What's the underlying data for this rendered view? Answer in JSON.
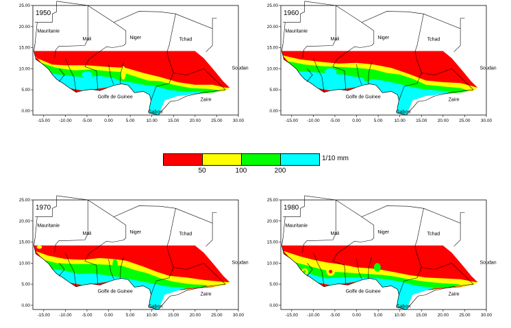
{
  "panels": [
    {
      "year": "1950"
    },
    {
      "year": "1960"
    },
    {
      "year": "1970"
    },
    {
      "year": "1980"
    }
  ],
  "y_ticks": [
    "25.00",
    "20.00",
    "15.00",
    "10.00",
    "5.00",
    "0.00"
  ],
  "x_ticks": [
    "-15.00",
    "-10.00",
    "-5.00",
    "0.00",
    "5.00",
    "10.00",
    "15.00",
    "20.00",
    "25.00",
    "30.00"
  ],
  "country_labels": {
    "mauritanie": "Mauritanie",
    "mali": "Mali",
    "niger": "Niger",
    "tchad": "Tchad",
    "soudan": "Soudan",
    "golfe": "Golfe de Guinee",
    "zaire": "Zaire",
    "gabon": "Gabon"
  },
  "legend": {
    "unit": "1/10 mm",
    "ticks": [
      "50",
      "100",
      "200"
    ],
    "classes": [
      {
        "color": "#ff0000"
      },
      {
        "color": "#ffff00"
      },
      {
        "color": "#00ff00"
      },
      {
        "color": "#00ffff"
      }
    ]
  }
}
